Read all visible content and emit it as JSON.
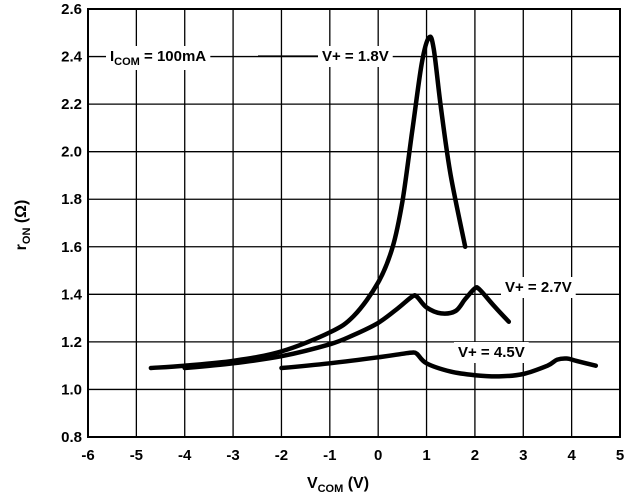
{
  "chart_data": {
    "type": "line",
    "xlabel": {
      "main": "V",
      "sub": "COM",
      "rest": " (V)"
    },
    "ylabel": {
      "main": "r",
      "sub": "ON",
      "rest": " (Ω)"
    },
    "xlim": [
      -6,
      5
    ],
    "ylim": [
      0.8,
      2.6
    ],
    "x_ticks": [
      "-6",
      "-5",
      "-4",
      "-3",
      "-2",
      "-1",
      "0",
      "1",
      "2",
      "3",
      "4",
      "5"
    ],
    "y_ticks": [
      "0.8",
      "1.0",
      "1.2",
      "1.4",
      "1.6",
      "1.8",
      "2.0",
      "2.2",
      "2.4",
      "2.6"
    ],
    "grid": true,
    "annotations": {
      "current": {
        "main": "I",
        "sub": "COM",
        "rest": " = 100mA"
      },
      "v18": "V+ = 1.8V",
      "v27": "V+ = 2.7V",
      "v45": "V+ = 4.5V"
    },
    "series": [
      {
        "name": "V+ = 4.5V",
        "x": [
          -2.0,
          -1.0,
          0.0,
          0.5,
          0.7,
          0.8,
          1.0,
          1.5,
          2.0,
          2.5,
          3.0,
          3.5,
          3.7,
          3.9,
          4.1,
          4.5
        ],
        "y": [
          1.09,
          1.11,
          1.135,
          1.15,
          1.155,
          1.15,
          1.11,
          1.075,
          1.06,
          1.055,
          1.065,
          1.1,
          1.125,
          1.13,
          1.12,
          1.1
        ]
      },
      {
        "name": "V+ = 2.7V",
        "x": [
          -4.0,
          -3.0,
          -2.0,
          -1.0,
          -0.5,
          0.0,
          0.4,
          0.7,
          0.8,
          1.0,
          1.3,
          1.6,
          1.8,
          2.0,
          2.1,
          2.4,
          2.7
        ],
        "y": [
          1.09,
          1.11,
          1.14,
          1.19,
          1.23,
          1.28,
          1.34,
          1.39,
          1.39,
          1.345,
          1.32,
          1.33,
          1.38,
          1.425,
          1.42,
          1.35,
          1.285
        ]
      },
      {
        "name": "V+ = 1.8V",
        "x": [
          -4.7,
          -4.0,
          -3.0,
          -2.0,
          -1.0,
          -0.5,
          0.0,
          0.3,
          0.5,
          0.7,
          0.9,
          1.05,
          1.15,
          1.3,
          1.5,
          1.8
        ],
        "y": [
          1.09,
          1.1,
          1.12,
          1.16,
          1.24,
          1.31,
          1.45,
          1.6,
          1.79,
          2.08,
          2.37,
          2.48,
          2.43,
          2.18,
          1.9,
          1.6
        ]
      }
    ]
  }
}
